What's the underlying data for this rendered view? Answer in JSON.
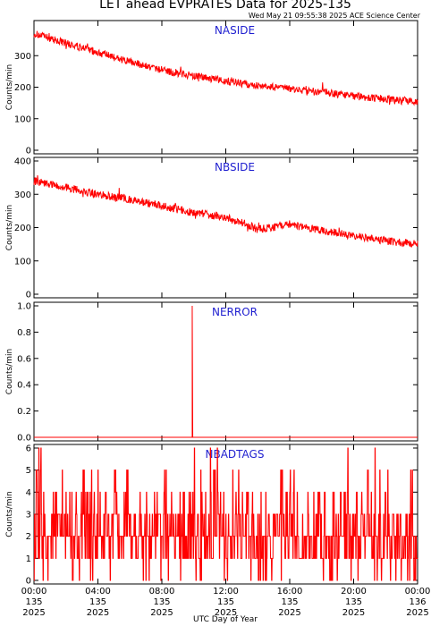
{
  "title": "LET ahead EVPRATES Data for 2025-135",
  "timestamp": "Wed May 21 09:55:38 2025 ACE Science Center",
  "xlabel": "UTC Day of Year",
  "colors": {
    "series": "#ff0000",
    "panel_label": "#1f1fd0",
    "axes": "#000000"
  },
  "chart_data": [
    {
      "type": "line",
      "series": [
        {
          "name": "NASIDE"
        }
      ],
      "ylabel": "Counts/min",
      "ylim": [
        0,
        400
      ],
      "yticks": [
        0,
        100,
        200,
        300
      ],
      "x_range_hours": [
        0,
        24
      ],
      "trend": {
        "x": [
          0,
          2,
          4,
          6,
          8,
          10,
          12,
          14,
          16,
          18,
          20,
          22,
          24
        ],
        "y": [
          370,
          340,
          310,
          280,
          255,
          235,
          220,
          205,
          195,
          185,
          172,
          162,
          155
        ]
      },
      "noise": 12
    },
    {
      "type": "line",
      "series": [
        {
          "name": "NBSIDE"
        }
      ],
      "ylabel": "Counts/min",
      "ylim": [
        0,
        400
      ],
      "yticks": [
        0,
        100,
        200,
        300,
        400
      ],
      "x_range_hours": [
        0,
        24
      ],
      "trend": {
        "x": [
          0,
          2,
          4,
          6,
          8,
          10,
          12,
          13,
          14,
          15,
          16,
          18,
          20,
          22,
          24
        ],
        "y": [
          340,
          320,
          300,
          285,
          265,
          245,
          230,
          215,
          195,
          200,
          210,
          190,
          175,
          160,
          150
        ]
      },
      "noise": 12
    },
    {
      "type": "line",
      "series": [
        {
          "name": "NERROR"
        }
      ],
      "ylabel": "Counts/min",
      "ylim": [
        0,
        1
      ],
      "yticks": [
        "0.0",
        "0.2",
        "0.4",
        "0.6",
        "0.8",
        "1.0"
      ],
      "x_range_hours": [
        0,
        24
      ],
      "spikes": [
        {
          "x": 9.9,
          "y": 1
        }
      ]
    },
    {
      "type": "line",
      "series": [
        {
          "name": "NBADTAGS"
        }
      ],
      "ylabel": "Counts/min",
      "ylim": [
        0,
        6
      ],
      "yticks": [
        0,
        1,
        2,
        3,
        4,
        5,
        6
      ],
      "x_range_hours": [
        0,
        24
      ],
      "value_range": [
        0,
        6
      ]
    }
  ],
  "xticks": [
    {
      "hours": 0,
      "time": "00:00",
      "day": "135",
      "year": "2025"
    },
    {
      "hours": 4,
      "time": "04:00",
      "day": "135",
      "year": "2025"
    },
    {
      "hours": 8,
      "time": "08:00",
      "day": "135",
      "year": "2025"
    },
    {
      "hours": 12,
      "time": "12:00",
      "day": "135",
      "year": "2025"
    },
    {
      "hours": 16,
      "time": "16:00",
      "day": "135",
      "year": "2025"
    },
    {
      "hours": 20,
      "time": "20:00",
      "day": "135",
      "year": "2025"
    },
    {
      "hours": 24,
      "time": "00:00",
      "day": "136",
      "year": "2025"
    }
  ]
}
